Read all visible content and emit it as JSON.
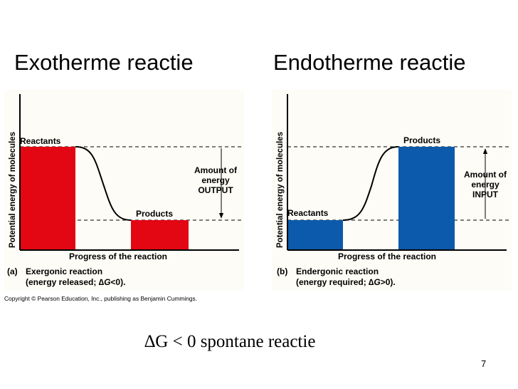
{
  "slide": {
    "title_left": "Exotherme reactie",
    "title_right": "Endotherme reactie",
    "copyright": "Copyright © Pearson Education, Inc., publishing as Benjamin Cummings.",
    "footer_text": "∆G < 0 spontane reactie",
    "slide_number": "7"
  },
  "panel_a": {
    "y_axis_label": "Potential energy of molecules",
    "x_axis_label": "Progress of the reaction",
    "reactants_label": "Reactants",
    "products_label": "Products",
    "annotation_line1": "Amount of",
    "annotation_line2": "energy",
    "annotation_line3": "OUTPUT",
    "caption_letter": "(a)",
    "caption_title": "Exergonic reaction",
    "caption_detail_prefix": "(energy released; ",
    "caption_delta": "∆",
    "caption_g": "G",
    "caption_detail_suffix": "<0).",
    "bar_color": "#e30613",
    "reactants_level": 1.0,
    "products_level": 0.0
  },
  "panel_b": {
    "y_axis_label": "Potential energy of molecules",
    "x_axis_label": "Progress of the reaction",
    "reactants_label": "Reactants",
    "products_label": "Products",
    "annotation_line1": "Amount of",
    "annotation_line2": "energy",
    "annotation_line3": "INPUT",
    "caption_letter": "(b)",
    "caption_title": "Endergonic reaction",
    "caption_detail_prefix": "(energy required; ",
    "caption_delta": "∆",
    "caption_g": "G",
    "caption_detail_suffix": ">0).",
    "bar_color": "#0b5aab",
    "reactants_level": 0.0,
    "products_level": 1.0
  }
}
